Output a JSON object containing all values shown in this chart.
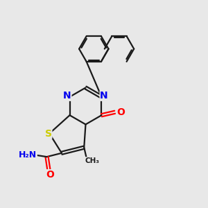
{
  "bg_color": "#e8e8e8",
  "bond_color": "#1a1a1a",
  "bond_width": 1.6,
  "S_color": "#cccc00",
  "N_color": "#0000ee",
  "O_color": "#ff0000",
  "font_size": 10,
  "figsize": [
    3.0,
    3.0
  ],
  "dpi": 100,
  "xlim": [
    0,
    10
  ],
  "ylim": [
    0,
    10
  ]
}
